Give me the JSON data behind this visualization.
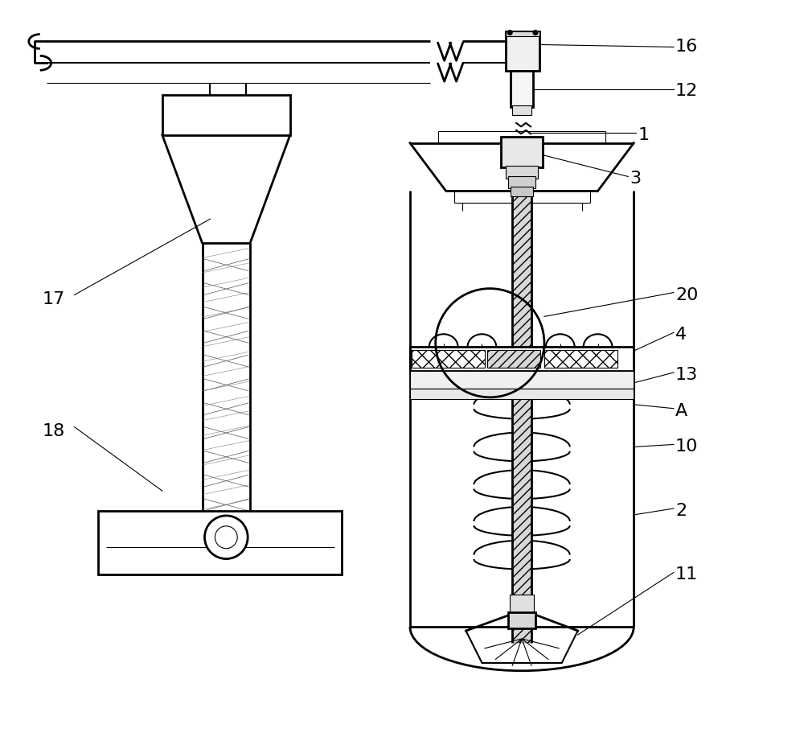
{
  "bg": "#ffffff",
  "lc": "#000000",
  "lw_thick": 2.0,
  "lw_med": 1.5,
  "lw_thin": 0.8,
  "fs": 16,
  "fig_w": 10.0,
  "fig_h": 9.21
}
